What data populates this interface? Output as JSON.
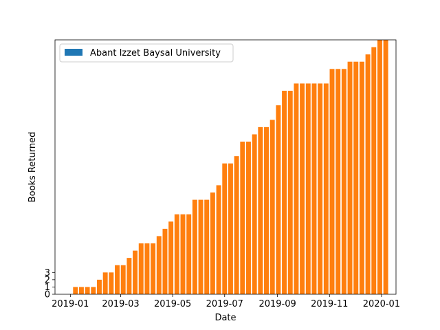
{
  "chart_data": {
    "type": "bar",
    "xlabel": "Date",
    "ylabel": "Books Returned",
    "legend": {
      "placement": "top-left",
      "entries": [
        "Abant Izzet Baysal University"
      ]
    },
    "colors": {
      "legend_patch": "#1f77b4",
      "bars": "#ff7f0e"
    },
    "x_tick_labels": [
      "2019-01",
      "2019-03",
      "2019-05",
      "2019-07",
      "2019-09",
      "2019-11",
      "2020-01"
    ],
    "x_ticks": [
      "2019-01-01",
      "2019-03-01",
      "2019-05-01",
      "2019-07-01",
      "2019-09-01",
      "2019-11-01",
      "2020-01-01"
    ],
    "y_tick_labels": [
      "0",
      "1",
      "2",
      "3"
    ],
    "y_ticks": [
      0,
      1,
      2,
      3
    ],
    "xlim": [
      "2018-12-14",
      "2020-01-18"
    ],
    "ylim": [
      0,
      35
    ],
    "grid": false,
    "series": [
      {
        "name": "Abant Izzet Baysal University",
        "x": [
          "2019-01-07",
          "2019-01-14",
          "2019-01-21",
          "2019-01-28",
          "2019-02-04",
          "2019-02-11",
          "2019-02-18",
          "2019-02-25",
          "2019-03-04",
          "2019-03-11",
          "2019-03-18",
          "2019-03-25",
          "2019-04-01",
          "2019-04-08",
          "2019-04-15",
          "2019-04-22",
          "2019-04-29",
          "2019-05-06",
          "2019-05-13",
          "2019-05-20",
          "2019-05-27",
          "2019-06-03",
          "2019-06-10",
          "2019-06-17",
          "2019-06-24",
          "2019-07-01",
          "2019-07-08",
          "2019-07-15",
          "2019-07-22",
          "2019-07-29",
          "2019-08-05",
          "2019-08-12",
          "2019-08-19",
          "2019-08-26",
          "2019-09-02",
          "2019-09-09",
          "2019-09-16",
          "2019-09-23",
          "2019-09-30",
          "2019-10-07",
          "2019-10-14",
          "2019-10-21",
          "2019-10-28",
          "2019-11-04",
          "2019-11-11",
          "2019-11-18",
          "2019-11-25",
          "2019-12-02",
          "2019-12-09",
          "2019-12-16",
          "2019-12-23",
          "2019-12-30",
          "2020-01-06"
        ],
        "values": [
          1,
          1,
          1,
          1,
          2,
          3,
          3,
          4,
          4,
          5,
          6,
          7,
          7,
          7,
          8,
          9,
          10,
          11,
          11,
          11,
          13,
          13,
          13,
          14,
          15,
          18,
          18,
          19,
          21,
          21,
          22,
          23,
          23,
          24,
          26,
          28,
          28,
          29,
          29,
          29,
          29,
          29,
          29,
          31,
          31,
          31,
          32,
          32,
          32,
          33,
          34,
          35,
          35
        ]
      }
    ]
  }
}
